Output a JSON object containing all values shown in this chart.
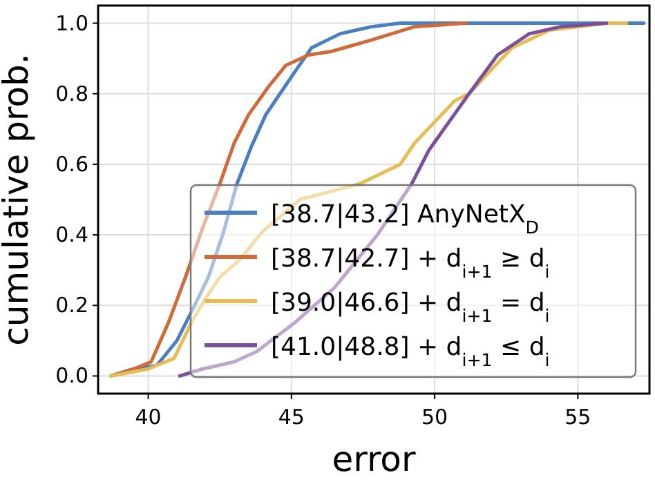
{
  "chart_data": {
    "type": "line",
    "xlabel": "error",
    "ylabel": "cumulative prob.",
    "xlim": [
      38.25,
      57.5
    ],
    "ylim": [
      -0.05,
      1.05
    ],
    "xticks": [
      40,
      45,
      50,
      55
    ],
    "yticks": [
      {
        "value": 0,
        "label": "0.0"
      },
      {
        "value": 0.2,
        "label": "0.2"
      },
      {
        "value": 0.4,
        "label": "0.4"
      },
      {
        "value": 0.6,
        "label": "0.6"
      },
      {
        "value": 0.8,
        "label": "0.8"
      },
      {
        "value": 1,
        "label": "1.0"
      }
    ],
    "grid": true,
    "legend": "bottom right",
    "line_style": "solid",
    "marker": "none",
    "series": [
      {
        "name": "[38.7|43.2] AnyNetX$_{D}$",
        "color": "#4a7fc1",
        "x": [
          38.7,
          39.5,
          40.3,
          41,
          41.5,
          42.1,
          42.6,
          43.1,
          43.6,
          44.1,
          44.6,
          45.1,
          45.7,
          46.7,
          47.8,
          48.8,
          57.3
        ],
        "values": [
          0,
          0.02,
          0.03,
          0.1,
          0.18,
          0.28,
          0.4,
          0.545,
          0.65,
          0.74,
          0.8,
          0.86,
          0.93,
          0.97,
          0.99,
          1,
          1
        ]
      },
      {
        "name": "[38.7|42.7] + d$_{i+1}$ ≥ d$_{i}$",
        "color": "#cf6a3a",
        "x": [
          38.7,
          39.5,
          40.1,
          40.7,
          41.3,
          41.9,
          42.5,
          43.0,
          43.5,
          44.2,
          44.8,
          45.6,
          46.4,
          47.7,
          48.5,
          49.3,
          51.1
        ],
        "values": [
          0,
          0.02,
          0.04,
          0.15,
          0.28,
          0.42,
          0.545,
          0.66,
          0.74,
          0.82,
          0.88,
          0.91,
          0.92,
          0.95,
          0.97,
          0.99,
          1
        ]
      },
      {
        "name": "[39.0|46.6] + d$_{i+1}$ = d$_{i}$",
        "color": "#e6bd55",
        "x": [
          38.7,
          40,
          40.9,
          41.5,
          42.0,
          42.5,
          43.2,
          44,
          45.3,
          47.4,
          48.8,
          49.3,
          50.0,
          50.7,
          51.2,
          52.0,
          52.7,
          54,
          56.0,
          56.7
        ],
        "values": [
          0,
          0.02,
          0.05,
          0.15,
          0.22,
          0.28,
          0.33,
          0.41,
          0.5,
          0.545,
          0.6,
          0.66,
          0.72,
          0.78,
          0.8,
          0.87,
          0.93,
          0.98,
          1,
          1
        ]
      },
      {
        "name": "[41.0|48.8] + d$_{i+1}$ ≤ d$_{i}$",
        "color": "#7b4f9a",
        "x": [
          41.1,
          41.9,
          43.0,
          43.8,
          45.1,
          46.5,
          48.0,
          49.2,
          49.8,
          50.5,
          51.2,
          52.2,
          53.3,
          54.4,
          56.0
        ],
        "values": [
          0,
          0.02,
          0.04,
          0.07,
          0.15,
          0.25,
          0.4,
          0.545,
          0.64,
          0.72,
          0.8,
          0.91,
          0.97,
          0.99,
          1
        ]
      }
    ]
  }
}
